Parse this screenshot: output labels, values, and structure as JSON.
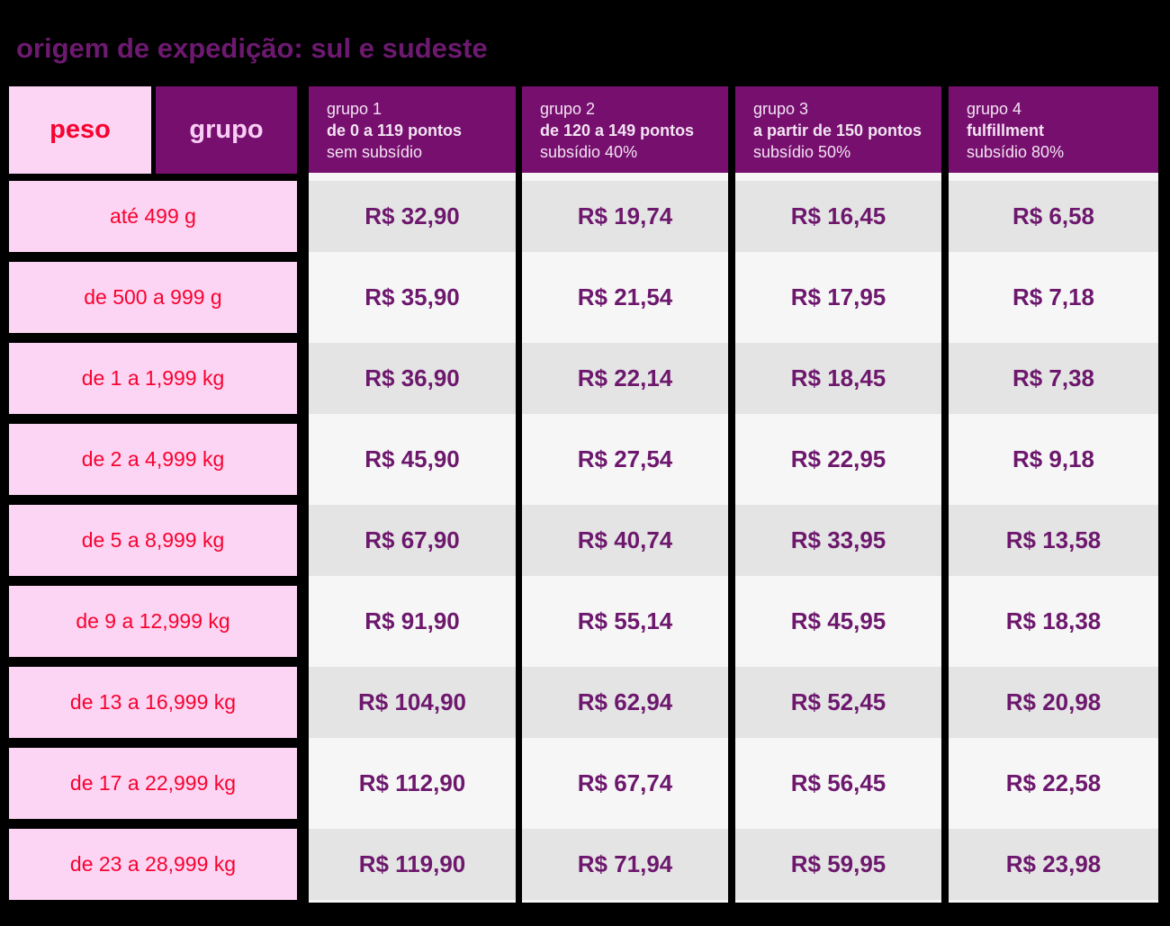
{
  "title": "origem de expedição: sul e sudeste",
  "colors": {
    "background": "#000000",
    "title_purple": "#6d1970",
    "header_purple": "#770f6f",
    "pink_cell": "#fbd5f3",
    "red_text": "#f80230",
    "grupo_label_pink": "#f9cdf4",
    "group_header_text": "#f2e3f1",
    "price_purple": "#6d186d",
    "row_shade_gray": "#e4e4e4",
    "row_light_gray": "#f6f6f6"
  },
  "table": {
    "peso_header": "peso",
    "grupo_header": "grupo",
    "groups": [
      {
        "line1": "grupo 1",
        "line2": "de 0 a 119 pontos",
        "line3": "sem subsídio"
      },
      {
        "line1": "grupo 2",
        "line2": "de 120 a 149 pontos",
        "line3": "subsídio 40%"
      },
      {
        "line1": "grupo 3",
        "line2": "a partir de 150 pontos",
        "line3": "subsídio 50%"
      },
      {
        "line1": "grupo 4",
        "line2": "fulfillment",
        "line3": "subsídio 80%"
      }
    ],
    "rows": [
      {
        "weight": "até 499 g",
        "prices": [
          "R$ 32,90",
          "R$ 19,74",
          "R$ 16,45",
          "R$ 6,58"
        ]
      },
      {
        "weight": "de 500 a 999 g",
        "prices": [
          "R$ 35,90",
          "R$ 21,54",
          "R$ 17,95",
          "R$ 7,18"
        ]
      },
      {
        "weight": "de 1 a 1,999 kg",
        "prices": [
          "R$ 36,90",
          "R$ 22,14",
          "R$ 18,45",
          "R$ 7,38"
        ]
      },
      {
        "weight": "de 2 a 4,999 kg",
        "prices": [
          "R$ 45,90",
          "R$ 27,54",
          "R$ 22,95",
          "R$ 9,18"
        ]
      },
      {
        "weight": "de 5 a 8,999 kg",
        "prices": [
          "R$ 67,90",
          "R$ 40,74",
          "R$ 33,95",
          "R$ 13,58"
        ]
      },
      {
        "weight": "de 9 a 12,999 kg",
        "prices": [
          "R$ 91,90",
          "R$ 55,14",
          "R$ 45,95",
          "R$ 18,38"
        ]
      },
      {
        "weight": "de 13 a 16,999 kg",
        "prices": [
          "R$ 104,90",
          "R$ 62,94",
          "R$ 52,45",
          "R$ 20,98"
        ]
      },
      {
        "weight": "de 17 a 22,999 kg",
        "prices": [
          "R$ 112,90",
          "R$ 67,74",
          "R$ 56,45",
          "R$ 22,58"
        ]
      },
      {
        "weight": "de 23 a 28,999 kg",
        "prices": [
          "R$ 119,90",
          "R$ 71,94",
          "R$ 59,95",
          "R$ 23,98"
        ]
      }
    ]
  }
}
